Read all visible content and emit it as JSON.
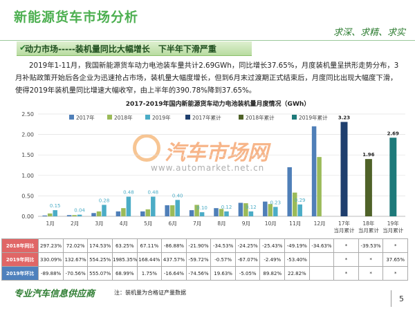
{
  "header": {
    "title": "新能源货车市场分析",
    "slogan": "求深、求精、求实"
  },
  "section": {
    "title": "动力市场-----装机量同比大幅增长　下半年下滑严重"
  },
  "paragraph": "2019年1-11月，我国新能源货车动力电池装车量共计2.69GWh，同比增长37.65%，月度装机量呈拱形走势分布，3月补贴政策开始后各企业为迅速抢占市场，装机量大幅度增长，但到6月末过渡期正式结束后，月度同比出现大幅度下滑，使得2019年装机量同比增速大幅收窄，由上半年的390.78%降到37.65%。",
  "chart_data": {
    "type": "bar",
    "title": "2017-2019年国内新能源货车动力电池装机量月度情况（GWh）",
    "categories": [
      "1月",
      "2月",
      "3月",
      "4月",
      "5月",
      "6月",
      "7月",
      "8月",
      "9月",
      "10月",
      "11月",
      "12月",
      "17年\n当月累计",
      "18年\n当月累计",
      "19年\n当月累计"
    ],
    "ylim": [
      0,
      2.5
    ],
    "yticks": [
      {
        "value": 0,
        "label": "0.00"
      },
      {
        "value": 0.5,
        "label": "0.50"
      },
      {
        "value": 1,
        "label": "1.00"
      },
      {
        "value": 1.5,
        "label": "1.50"
      },
      {
        "value": 2,
        "label": "2.00"
      },
      {
        "value": 2.5,
        "label": "2.50"
      }
    ],
    "y2lim": [
      0,
      3.5
    ],
    "series": [
      {
        "name": "2017年",
        "color": "#4f7fb8",
        "values": [
          0.02,
          0.03,
          0.08,
          0.12,
          0.12,
          0.27,
          0.15,
          0.2,
          0.33,
          0.36,
          1.2,
          2.2,
          null,
          null,
          null
        ]
      },
      {
        "name": "2018年",
        "color": "#9bbb59",
        "values": [
          0.07,
          0.03,
          0.12,
          0.2,
          0.17,
          0.27,
          0.28,
          0.18,
          0.32,
          0.3,
          0.58,
          1.45,
          null,
          null,
          null
        ]
      },
      {
        "name": "2019年",
        "color": "#4bacc6",
        "values": [
          0.15,
          0.04,
          0.28,
          0.48,
          0.48,
          0.4,
          0.1,
          0.12,
          0.12,
          0.23,
          0.29,
          null,
          null,
          null,
          null
        ],
        "value_labels": [
          "0.15",
          "0.04",
          "0.28",
          "0.48",
          "0.48",
          "0.40",
          "0.10",
          "0.12",
          "0.12",
          "0.23",
          "0.29",
          null,
          null,
          null,
          null
        ]
      },
      {
        "name": "2017年累计",
        "color": "#1f3f6e",
        "axis": "y2",
        "values": [
          null,
          null,
          null,
          null,
          null,
          null,
          null,
          null,
          null,
          null,
          null,
          null,
          3.23,
          null,
          null
        ]
      },
      {
        "name": "2018年累计",
        "color": "#4f6228",
        "axis": "y2",
        "values": [
          null,
          null,
          null,
          null,
          null,
          null,
          null,
          null,
          null,
          null,
          null,
          null,
          null,
          1.96,
          null
        ]
      },
      {
        "name": "2019年累计",
        "color": "#1e7a7a",
        "axis": "y2",
        "values": [
          null,
          null,
          null,
          null,
          null,
          null,
          null,
          null,
          null,
          null,
          null,
          null,
          null,
          null,
          2.69
        ]
      }
    ]
  },
  "table": {
    "rows": [
      [
        "2018年同比",
        "297.23%",
        "72.02%",
        "174.53%",
        "63.25%",
        "67.11%",
        "-86.88%",
        "-21.90%",
        "-34.53%",
        "-24.25%",
        "-25.43%",
        "-49.19%",
        "-34.63%",
        "*",
        "-39.53%",
        "*"
      ],
      [
        "2019年同比",
        "330.09%",
        "132.67%",
        "554.25%",
        "1985.35%",
        "168.44%",
        "437.57%",
        "-59.72%",
        "-0.57%",
        "-67.07%",
        "-2.49%",
        "-53.40%",
        null,
        "*",
        "*",
        "37.65%"
      ],
      [
        "2019年环比",
        "-89.88%",
        "-70.56%",
        "555.07%",
        "68.99%",
        "1.75%",
        "-16.64%",
        "-74.56%",
        "19.63%",
        "-5.05%",
        "89.82%",
        "22.82%",
        null,
        "*",
        "*",
        "*"
      ]
    ]
  },
  "watermark": {
    "name": "汽车市场网",
    "url": "www.automarket.net.cn"
  },
  "footer": {
    "slogan": "专业汽车信息供应商",
    "note": "注：装机量为合格证产量数据",
    "page": "5"
  }
}
